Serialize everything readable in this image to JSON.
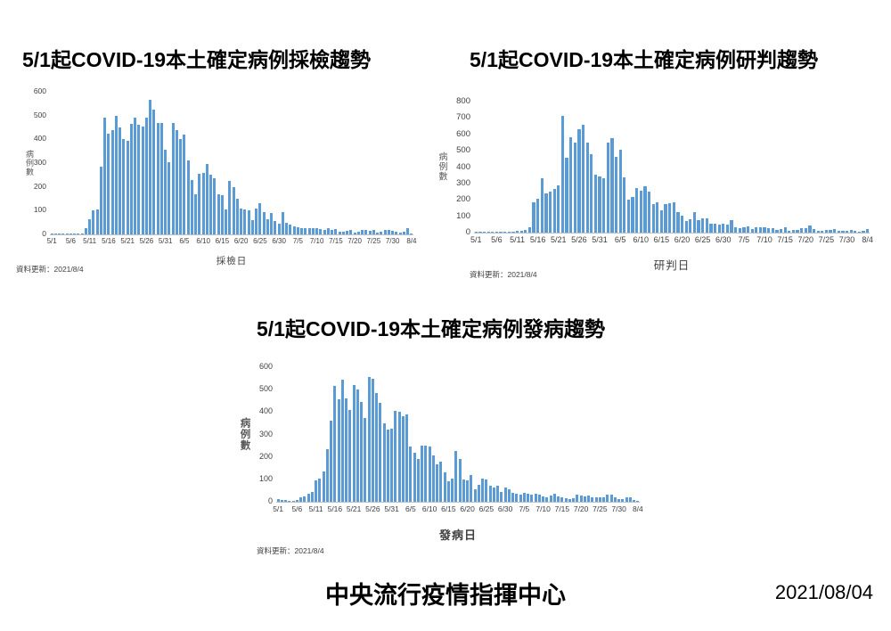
{
  "slide": {
    "footer_org": "中央流行疫情指揮中心",
    "footer_date": "2021/08/04"
  },
  "colors": {
    "bar": "#5b9bd5",
    "axis_line": "#bfbfbf",
    "tick_text": "#404040",
    "title_text": "#000000"
  },
  "chart_data": [
    {
      "type": "bar",
      "title": "5/1起COVID-19本土確定病例採檢趨勢",
      "ylabel": "病例數",
      "xlabel": "採檢日",
      "update_note": "資料更新：2021/8/4",
      "x_start": "5/1",
      "x_end": "8/4",
      "ylim": [
        0,
        600
      ],
      "ytick_step": 100,
      "grid": false,
      "legend": false,
      "xtick_labels": [
        "5/1",
        "5/6",
        "5/11",
        "5/16",
        "5/21",
        "5/26",
        "5/31",
        "6/5",
        "6/10",
        "6/15",
        "6/20",
        "6/25",
        "6/30",
        "7/5",
        "7/10",
        "7/15",
        "7/20",
        "7/25",
        "7/30",
        "8/4"
      ],
      "values": [
        2,
        2,
        2,
        2,
        2,
        2,
        3,
        3,
        5,
        25,
        65,
        100,
        105,
        285,
        490,
        425,
        440,
        500,
        450,
        400,
        395,
        465,
        490,
        460,
        455,
        490,
        565,
        525,
        470,
        470,
        355,
        305,
        470,
        440,
        400,
        420,
        310,
        230,
        170,
        255,
        260,
        295,
        250,
        235,
        170,
        165,
        105,
        225,
        200,
        150,
        110,
        105,
        100,
        60,
        110,
        130,
        95,
        65,
        90,
        55,
        45,
        95,
        50,
        40,
        35,
        30,
        28,
        25,
        25,
        28,
        25,
        22,
        20,
        28,
        18,
        23,
        12,
        10,
        15,
        20,
        8,
        10,
        18,
        20,
        15,
        18,
        8,
        10,
        18,
        20,
        15,
        10,
        8,
        12,
        25,
        3
      ]
    },
    {
      "type": "bar",
      "title": "5/1起COVID-19本土確定病例研判趨勢",
      "ylabel": "病例數",
      "xlabel": "研判日",
      "update_note": "資料更新：2021/8/4",
      "x_start": "5/1",
      "x_end": "8/4",
      "ylim": [
        0,
        800
      ],
      "ytick_step": 100,
      "grid": false,
      "legend": false,
      "xtick_labels": [
        "5/1",
        "5/6",
        "5/11",
        "5/16",
        "5/21",
        "5/26",
        "5/31",
        "6/5",
        "6/10",
        "6/15",
        "6/20",
        "6/25",
        "6/30",
        "7/5",
        "7/10",
        "7/15",
        "7/20",
        "7/25",
        "7/30",
        "8/4"
      ],
      "values": [
        2,
        2,
        2,
        2,
        2,
        2,
        3,
        3,
        5,
        8,
        10,
        13,
        18,
        30,
        185,
        205,
        330,
        240,
        252,
        267,
        287,
        715,
        455,
        585,
        550,
        630,
        660,
        552,
        480,
        355,
        345,
        330,
        550,
        575,
        460,
        505,
        340,
        200,
        220,
        270,
        255,
        285,
        250,
        175,
        185,
        135,
        175,
        180,
        185,
        125,
        105,
        70,
        80,
        125,
        75,
        85,
        85,
        55,
        55,
        50,
        55,
        50,
        75,
        35,
        25,
        30,
        40,
        20,
        35,
        30,
        30,
        25,
        25,
        15,
        20,
        30,
        10,
        15,
        15,
        25,
        25,
        45,
        20,
        10,
        10,
        15,
        15,
        20,
        10,
        10,
        10,
        15,
        12,
        8,
        12,
        20
      ]
    },
    {
      "type": "bar",
      "title": "5/1起COVID-19本土確定病例發病趨勢",
      "ylabel": "病例數",
      "xlabel": "發病日",
      "update_note": "資料更新：2021/8/4",
      "x_start": "5/1",
      "x_end": "8/4",
      "ylim": [
        0,
        600
      ],
      "ytick_step": 100,
      "grid": false,
      "legend": false,
      "xtick_labels": [
        "5/1",
        "5/6",
        "5/11",
        "5/16",
        "5/21",
        "5/26",
        "5/31",
        "6/5",
        "6/10",
        "6/15",
        "6/20",
        "6/25",
        "6/30",
        "7/5",
        "7/10",
        "7/15",
        "7/20",
        "7/25",
        "7/30",
        "8/4"
      ],
      "values": [
        10,
        8,
        8,
        5,
        3,
        8,
        20,
        25,
        35,
        45,
        95,
        105,
        135,
        235,
        360,
        515,
        455,
        545,
        460,
        410,
        520,
        500,
        445,
        375,
        555,
        550,
        485,
        440,
        350,
        320,
        325,
        405,
        400,
        380,
        390,
        245,
        220,
        190,
        250,
        250,
        245,
        205,
        165,
        180,
        130,
        90,
        105,
        225,
        190,
        100,
        95,
        120,
        55,
        75,
        105,
        98,
        70,
        62,
        70,
        45,
        62,
        55,
        40,
        35,
        30,
        40,
        35,
        30,
        35,
        30,
        25,
        20,
        28,
        35,
        25,
        18,
        15,
        12,
        15,
        30,
        28,
        25,
        28,
        20,
        18,
        18,
        20,
        30,
        32,
        18,
        12,
        10,
        18,
        20,
        8,
        2
      ]
    }
  ]
}
